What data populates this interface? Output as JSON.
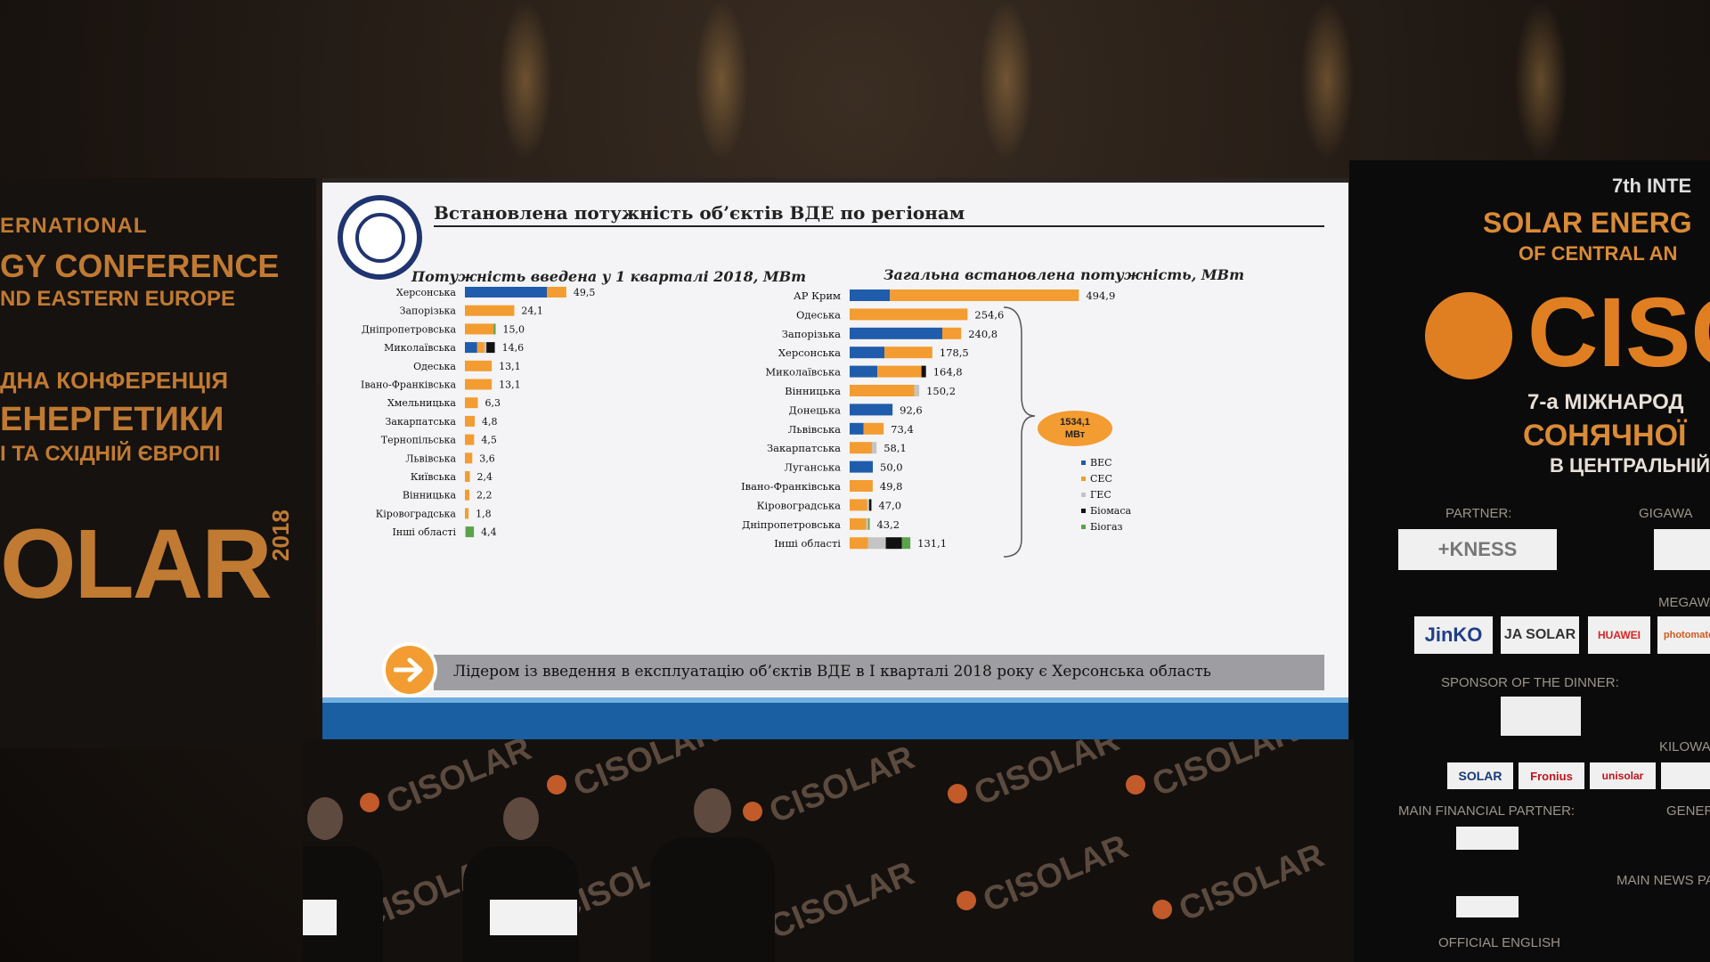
{
  "slide": {
    "title": "Встановлена потужність об’єктів ВДЕ по регіонам",
    "left_chart_title": "Потужність введена у 1 кварталі 2018, МВт",
    "right_chart_title": "Загальна встановлена потужність, МВт",
    "bracket_label": "1534,1 МВт",
    "bottom_text": "Лідером із введення в експлуатацію об’єктів ВДЕ в І кварталі 2018 року є Херсонська область"
  },
  "colors": {
    "wind": "#1f5cab",
    "solar": "#f39c31",
    "hydro": "#c4c4c4",
    "biomass": "#111111",
    "biogas": "#5aa34a"
  },
  "chart_data": [
    {
      "type": "bar",
      "orientation": "horizontal",
      "stacked": true,
      "title": "Потужність введена у 1 кварталі 2018, МВт",
      "categories": [
        "Херсонська",
        "Запорізька",
        "Дніпропетровська",
        "Миколаївська",
        "Одеська",
        "Івано-Франківська",
        "Хмельницька",
        "Закарпатська",
        "Тернопільська",
        "Львівська",
        "Київська",
        "Вінницька",
        "Кіровоградська",
        "Інші області"
      ],
      "totals": [
        "49,5",
        "24,1",
        "15,0",
        "14,6",
        "13,1",
        "13,1",
        "6,3",
        "4,8",
        "4,5",
        "3,6",
        "2,4",
        "2,2",
        "1,8",
        "4,4"
      ],
      "series": [
        {
          "name": "ВЕС",
          "values": [
            40.0,
            0,
            0,
            6.0,
            0,
            0,
            0,
            0,
            0,
            0,
            0,
            0,
            0,
            0
          ]
        },
        {
          "name": "СЕС",
          "values": [
            9.5,
            24.1,
            14.0,
            3.5,
            13.1,
            13.1,
            6.3,
            4.8,
            4.5,
            3.6,
            2.4,
            2.2,
            1.8,
            0
          ]
        },
        {
          "name": "ГЕС",
          "values": [
            0,
            0,
            0,
            1.0,
            0,
            0,
            0,
            0,
            0,
            0,
            0,
            0,
            0,
            0.4
          ]
        },
        {
          "name": "Біомаса",
          "values": [
            0,
            0,
            0,
            4.1,
            0,
            0,
            0,
            0,
            0,
            0,
            0,
            0,
            0,
            0
          ]
        },
        {
          "name": "Біогаз",
          "values": [
            0,
            0,
            1.0,
            0,
            0,
            0,
            0,
            0,
            0,
            0,
            0,
            0,
            0,
            4.0
          ]
        }
      ]
    },
    {
      "type": "bar",
      "orientation": "horizontal",
      "stacked": true,
      "title": "Загальна встановлена потужність, МВт",
      "categories": [
        "АР Крим",
        "Одеська",
        "Запорізька",
        "Херсонська",
        "Миколаївська",
        "Вінницька",
        "Донецька",
        "Львівська",
        "Закарпатська",
        "Луганська",
        "Івано-Франківська",
        "Кіровоградська",
        "Дніпропетровська",
        "Інші області"
      ],
      "totals": [
        "494,9",
        "254,6",
        "240,8",
        "178,5",
        "164,8",
        "150,2",
        "92,6",
        "73,4",
        "58,1",
        "50,0",
        "49,8",
        "47,0",
        "43,2",
        "131,1"
      ],
      "series": [
        {
          "name": "ВЕС",
          "values": [
            87,
            0,
            200,
            75,
            60,
            0,
            92.6,
            30,
            0,
            50,
            0,
            0,
            0,
            0
          ]
        },
        {
          "name": "СЕС",
          "values": [
            407.9,
            254.6,
            40.8,
            103.5,
            95,
            140,
            0,
            43.4,
            48,
            0,
            49.8,
            38,
            36,
            40
          ]
        },
        {
          "name": "ГЕС",
          "values": [
            0,
            0,
            0,
            0,
            0,
            10.2,
            0,
            0,
            10.1,
            0,
            0,
            4,
            4,
            38
          ]
        },
        {
          "name": "Біомаса",
          "values": [
            0,
            0,
            0,
            0,
            9.8,
            0,
            0,
            0,
            0,
            0,
            0,
            5,
            0,
            35
          ]
        },
        {
          "name": "Біогаз",
          "values": [
            0,
            0,
            0,
            0,
            0,
            0,
            0,
            0,
            0,
            0,
            0,
            0,
            3.2,
            18.1
          ]
        }
      ],
      "legend": [
        "ВЕС",
        "СЕС",
        "ГЕС",
        "Біомаса",
        "Біогаз"
      ],
      "legend_position": "right"
    }
  ],
  "venue": {
    "left_banner": [
      "ERNATIONAL",
      "GY CONFERENCE",
      "ND EASTERN EUROPE",
      "ДНА КОНФЕРЕНЦІЯ",
      "ЕНЕРГЕТИКИ",
      "І ТА СХІДНІЙ ЄВРОПІ",
      "OLAR",
      "2018"
    ],
    "right_banner": [
      "7th INTE",
      "SOLAR ENERG",
      "OF CENTRAL AN",
      "CISO",
      "7-а МІЖНАРОД",
      "СОНЯЧНОЇ",
      "В ЦЕНТРАЛЬНІЙ"
    ],
    "sponsor_labels": [
      "PARTNER:",
      "GIGAWA",
      "MEGAWA",
      "SPONSOR OF THE DINNER:",
      "KILOWA",
      "MAIN FINANCIAL PARTNER:",
      "GENERA",
      "MAIN NEWS PARTNER:",
      "OFFICIAL ENGLISH"
    ],
    "sponsor_logos": [
      "+KNESS",
      "JinKO",
      "JA SOLAR",
      "HUAWEI",
      "photomate",
      "SOLAR",
      "Fronius",
      "unisolar"
    ],
    "stage_word": "CISOLAR"
  }
}
